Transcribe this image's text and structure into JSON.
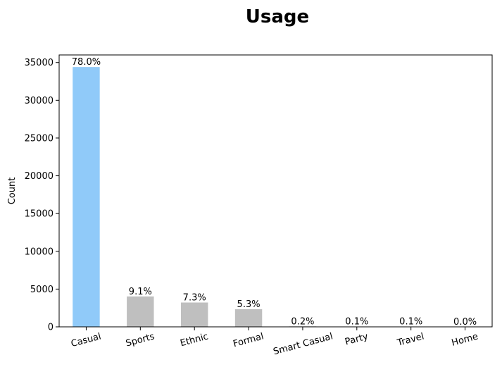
{
  "chart_data": {
    "type": "bar",
    "title": "Usage",
    "xlabel": "",
    "ylabel": "Count",
    "categories": [
      "Casual",
      "Sports",
      "Ethnic",
      "Formal",
      "Smart Casual",
      "Party",
      "Travel",
      "Home"
    ],
    "values": [
      34400,
      4030,
      3220,
      2340,
      67,
      29,
      26,
      1
    ],
    "percent_labels": [
      "78.0%",
      "9.1%",
      "7.3%",
      "5.3%",
      "0.2%",
      "0.1%",
      "0.1%",
      "0.0%"
    ],
    "ylim": [
      0,
      36000
    ],
    "yticks": [
      0,
      5000,
      10000,
      15000,
      20000,
      25000,
      30000,
      35000
    ],
    "xtick_rotation_deg": 15,
    "grid": false,
    "legend": "none",
    "colors": {
      "highlight": "#90CAF9",
      "default": "#BFBFBF"
    }
  }
}
